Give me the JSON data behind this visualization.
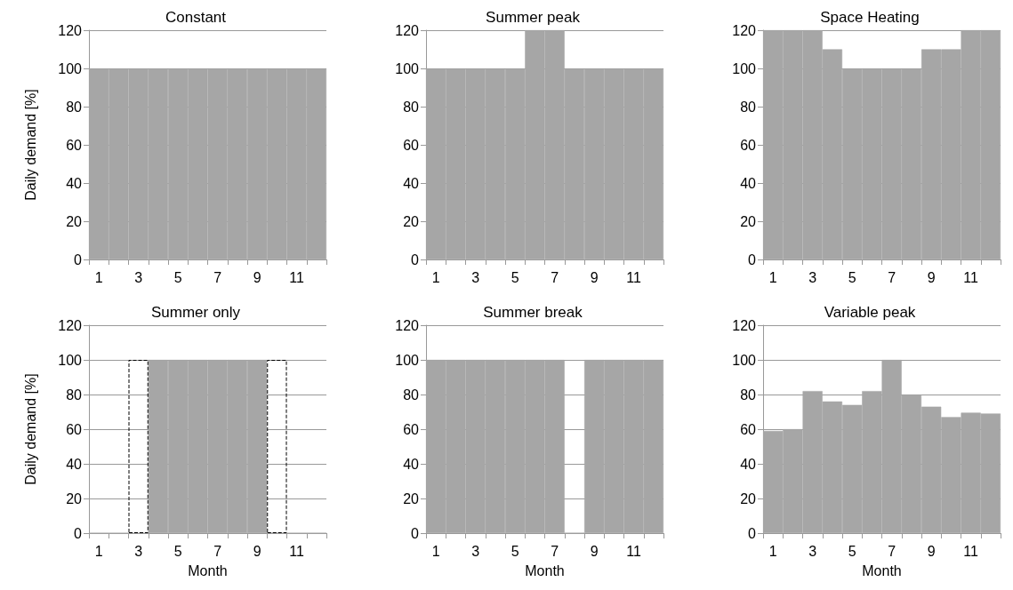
{
  "chart_data": [
    {
      "type": "bar",
      "title": "Constant",
      "ylabel": "Daily demand [%]",
      "categories": [
        "1",
        null,
        "3",
        null,
        "5",
        null,
        "7",
        null,
        "9",
        null,
        "11",
        null
      ],
      "values": [
        100,
        100,
        100,
        100,
        100,
        100,
        100,
        100,
        100,
        100,
        100,
        100
      ],
      "color": "#a6a6a6",
      "ylim": [
        0,
        120
      ],
      "yticks": [
        0,
        20,
        40,
        60,
        80,
        100,
        120
      ],
      "grid": "y"
    },
    {
      "type": "bar",
      "title": "Summer peak",
      "categories": [
        "1",
        null,
        "3",
        null,
        "5",
        null,
        "7",
        null,
        "9",
        null,
        "11",
        null
      ],
      "values": [
        100,
        100,
        100,
        100,
        100,
        120,
        120,
        100,
        100,
        100,
        100,
        100
      ],
      "color": "#a6a6a6",
      "ylim": [
        0,
        120
      ],
      "yticks": [
        0,
        20,
        40,
        60,
        80,
        100,
        120
      ],
      "grid": "y"
    },
    {
      "type": "bar",
      "title": "Space Heating",
      "categories": [
        "1",
        null,
        "3",
        null,
        "5",
        null,
        "7",
        null,
        "9",
        null,
        "11",
        null
      ],
      "values": [
        120,
        120,
        120,
        110,
        100,
        100,
        100,
        100,
        110,
        110,
        120,
        120
      ],
      "color": "#a6a6a6",
      "ylim": [
        0,
        120
      ],
      "yticks": [
        0,
        20,
        40,
        60,
        80,
        100,
        120
      ],
      "grid": "y"
    },
    {
      "type": "bar",
      "title": "Summer only",
      "ylabel": "Daily demand [%]",
      "xlabel": "Month",
      "categories": [
        "1",
        null,
        "3",
        null,
        "5",
        null,
        "7",
        null,
        "9",
        null,
        "11",
        null
      ],
      "series": [
        {
          "color": "#a6a6a6",
          "values": [
            0,
            0,
            0,
            100,
            100,
            100,
            100,
            100,
            100,
            0,
            0,
            0
          ]
        },
        {
          "color": "#000000",
          "line_style": "dashed",
          "values": [
            null,
            null,
            100,
            null,
            null,
            null,
            null,
            null,
            null,
            100,
            null,
            null
          ]
        }
      ],
      "ylim": [
        0,
        120
      ],
      "yticks": [
        0,
        20,
        40,
        60,
        80,
        100,
        120
      ],
      "grid": "y"
    },
    {
      "type": "bar",
      "title": "Summer break",
      "xlabel": "Month",
      "categories": [
        "1",
        null,
        "3",
        null,
        "5",
        null,
        "7",
        null,
        "9",
        null,
        "11",
        null
      ],
      "values": [
        100,
        100,
        100,
        100,
        100,
        100,
        100,
        0,
        100,
        100,
        100,
        100
      ],
      "color": "#a6a6a6",
      "ylim": [
        0,
        120
      ],
      "yticks": [
        0,
        20,
        40,
        60,
        80,
        100,
        120
      ],
      "grid": "y"
    },
    {
      "type": "bar",
      "title": "Variable peak",
      "xlabel": "Month",
      "categories": [
        "1",
        null,
        "3",
        null,
        "5",
        null,
        "7",
        null,
        "9",
        null,
        "11",
        null
      ],
      "values": [
        59,
        60,
        82,
        76,
        74,
        82,
        100,
        80,
        73,
        67,
        69.5,
        69
      ],
      "color": "#a6a6a6",
      "ylim": [
        0,
        120
      ],
      "yticks": [
        0,
        20,
        40,
        60,
        80,
        100,
        120
      ],
      "grid": "y"
    }
  ]
}
